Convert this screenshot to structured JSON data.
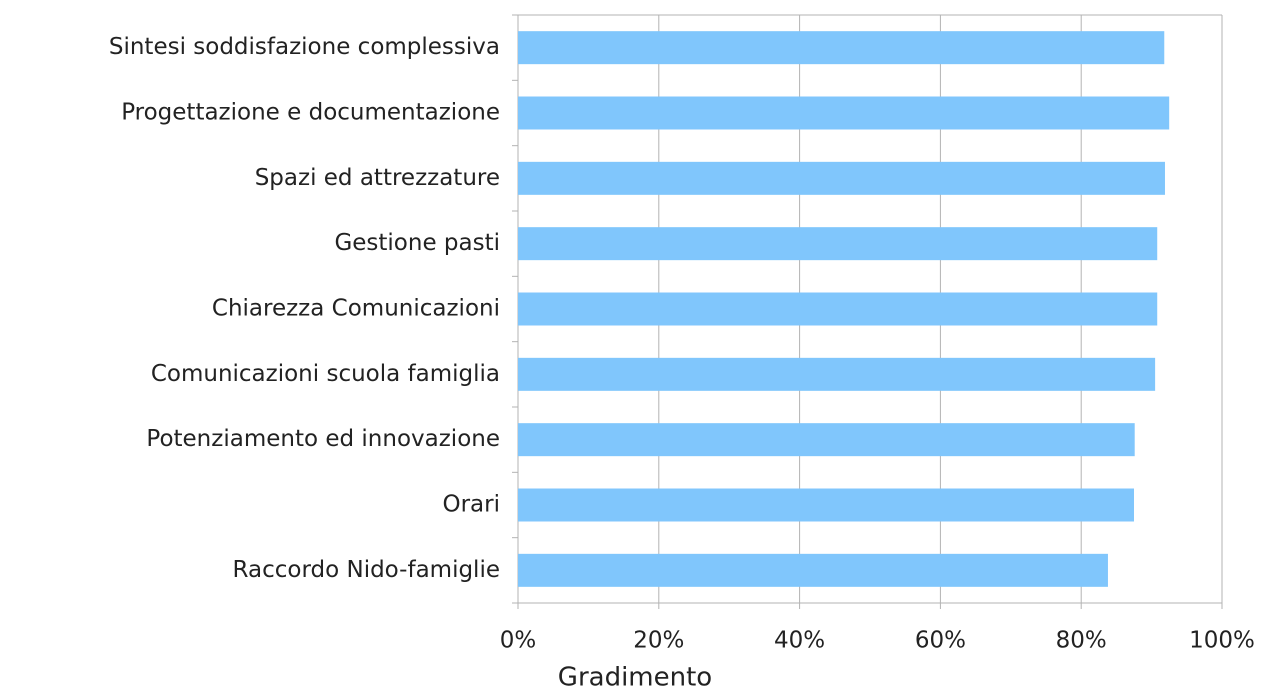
{
  "chart_data": {
    "type": "barh",
    "categories": [
      "Sintesi soddisfazione complessiva",
      "Progettazione e documentazione",
      "Spazi ed attrezzature",
      "Gestione pasti",
      "Chiarezza Comunicazioni",
      "Comunicazioni scuola famiglia",
      "Potenziamento ed innovazione",
      "Orari",
      "Raccordo Nido-famiglie"
    ],
    "values": [
      91.8,
      92.5,
      91.9,
      90.8,
      90.8,
      90.5,
      87.6,
      87.5,
      83.8
    ],
    "color": "#80c6fc",
    "xlabel": "Gradimento",
    "xlim": [
      0,
      100
    ],
    "xticks": [
      {
        "value": 0,
        "label": "0%"
      },
      {
        "value": 20,
        "label": "20%"
      },
      {
        "value": 40,
        "label": "40%"
      },
      {
        "value": 60,
        "label": "60%"
      },
      {
        "value": 80,
        "label": "80%"
      },
      {
        "value": 100,
        "label": "100%"
      }
    ],
    "grid": true
  }
}
